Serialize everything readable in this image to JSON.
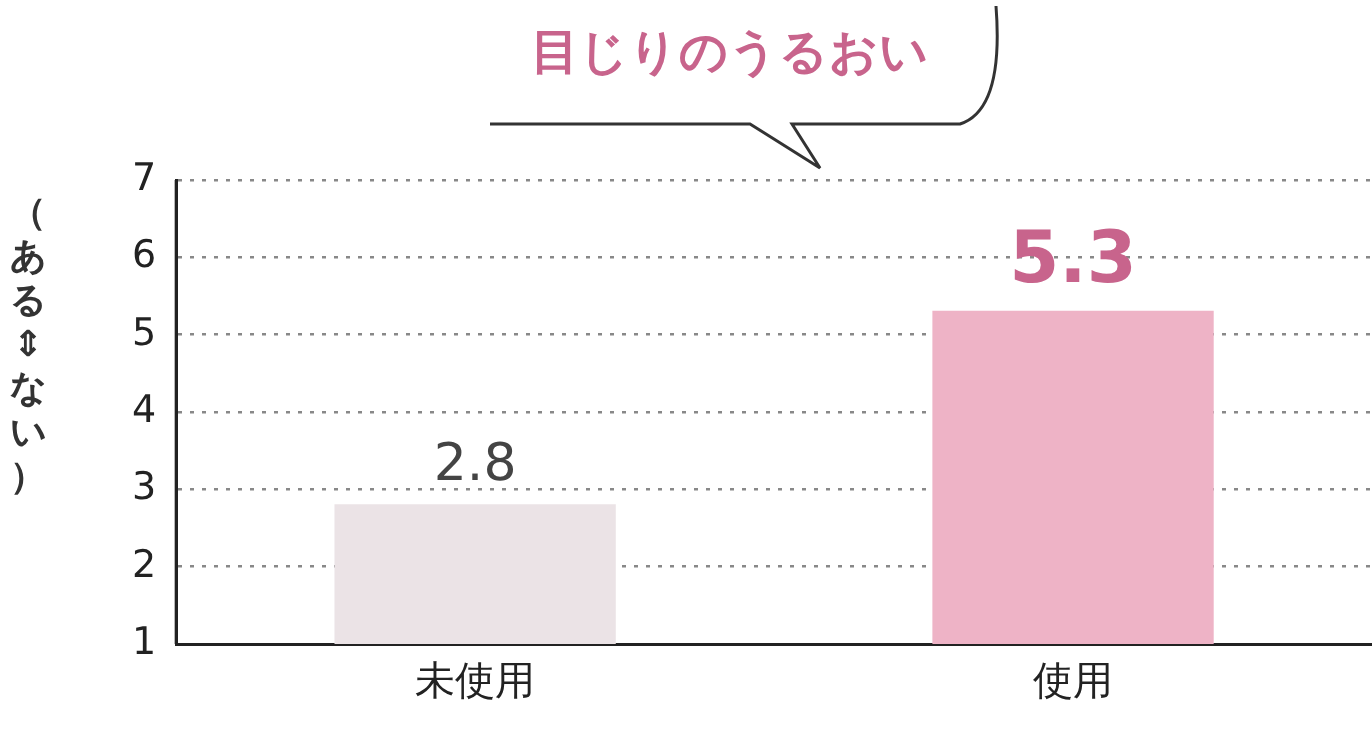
{
  "chart_data": {
    "type": "bar",
    "title": "目じりのうるおい",
    "ylabel": "（ある⇕ない）",
    "categories": [
      "未使用",
      "使用"
    ],
    "values": [
      2.8,
      5.3
    ],
    "colors": [
      "#ebe3e6",
      "#eeb3c6"
    ],
    "ylim": [
      1,
      7
    ],
    "yticks": [
      1,
      2,
      3,
      4,
      5,
      6,
      7
    ],
    "grid": "y",
    "data_labels": true,
    "legend": false
  }
}
